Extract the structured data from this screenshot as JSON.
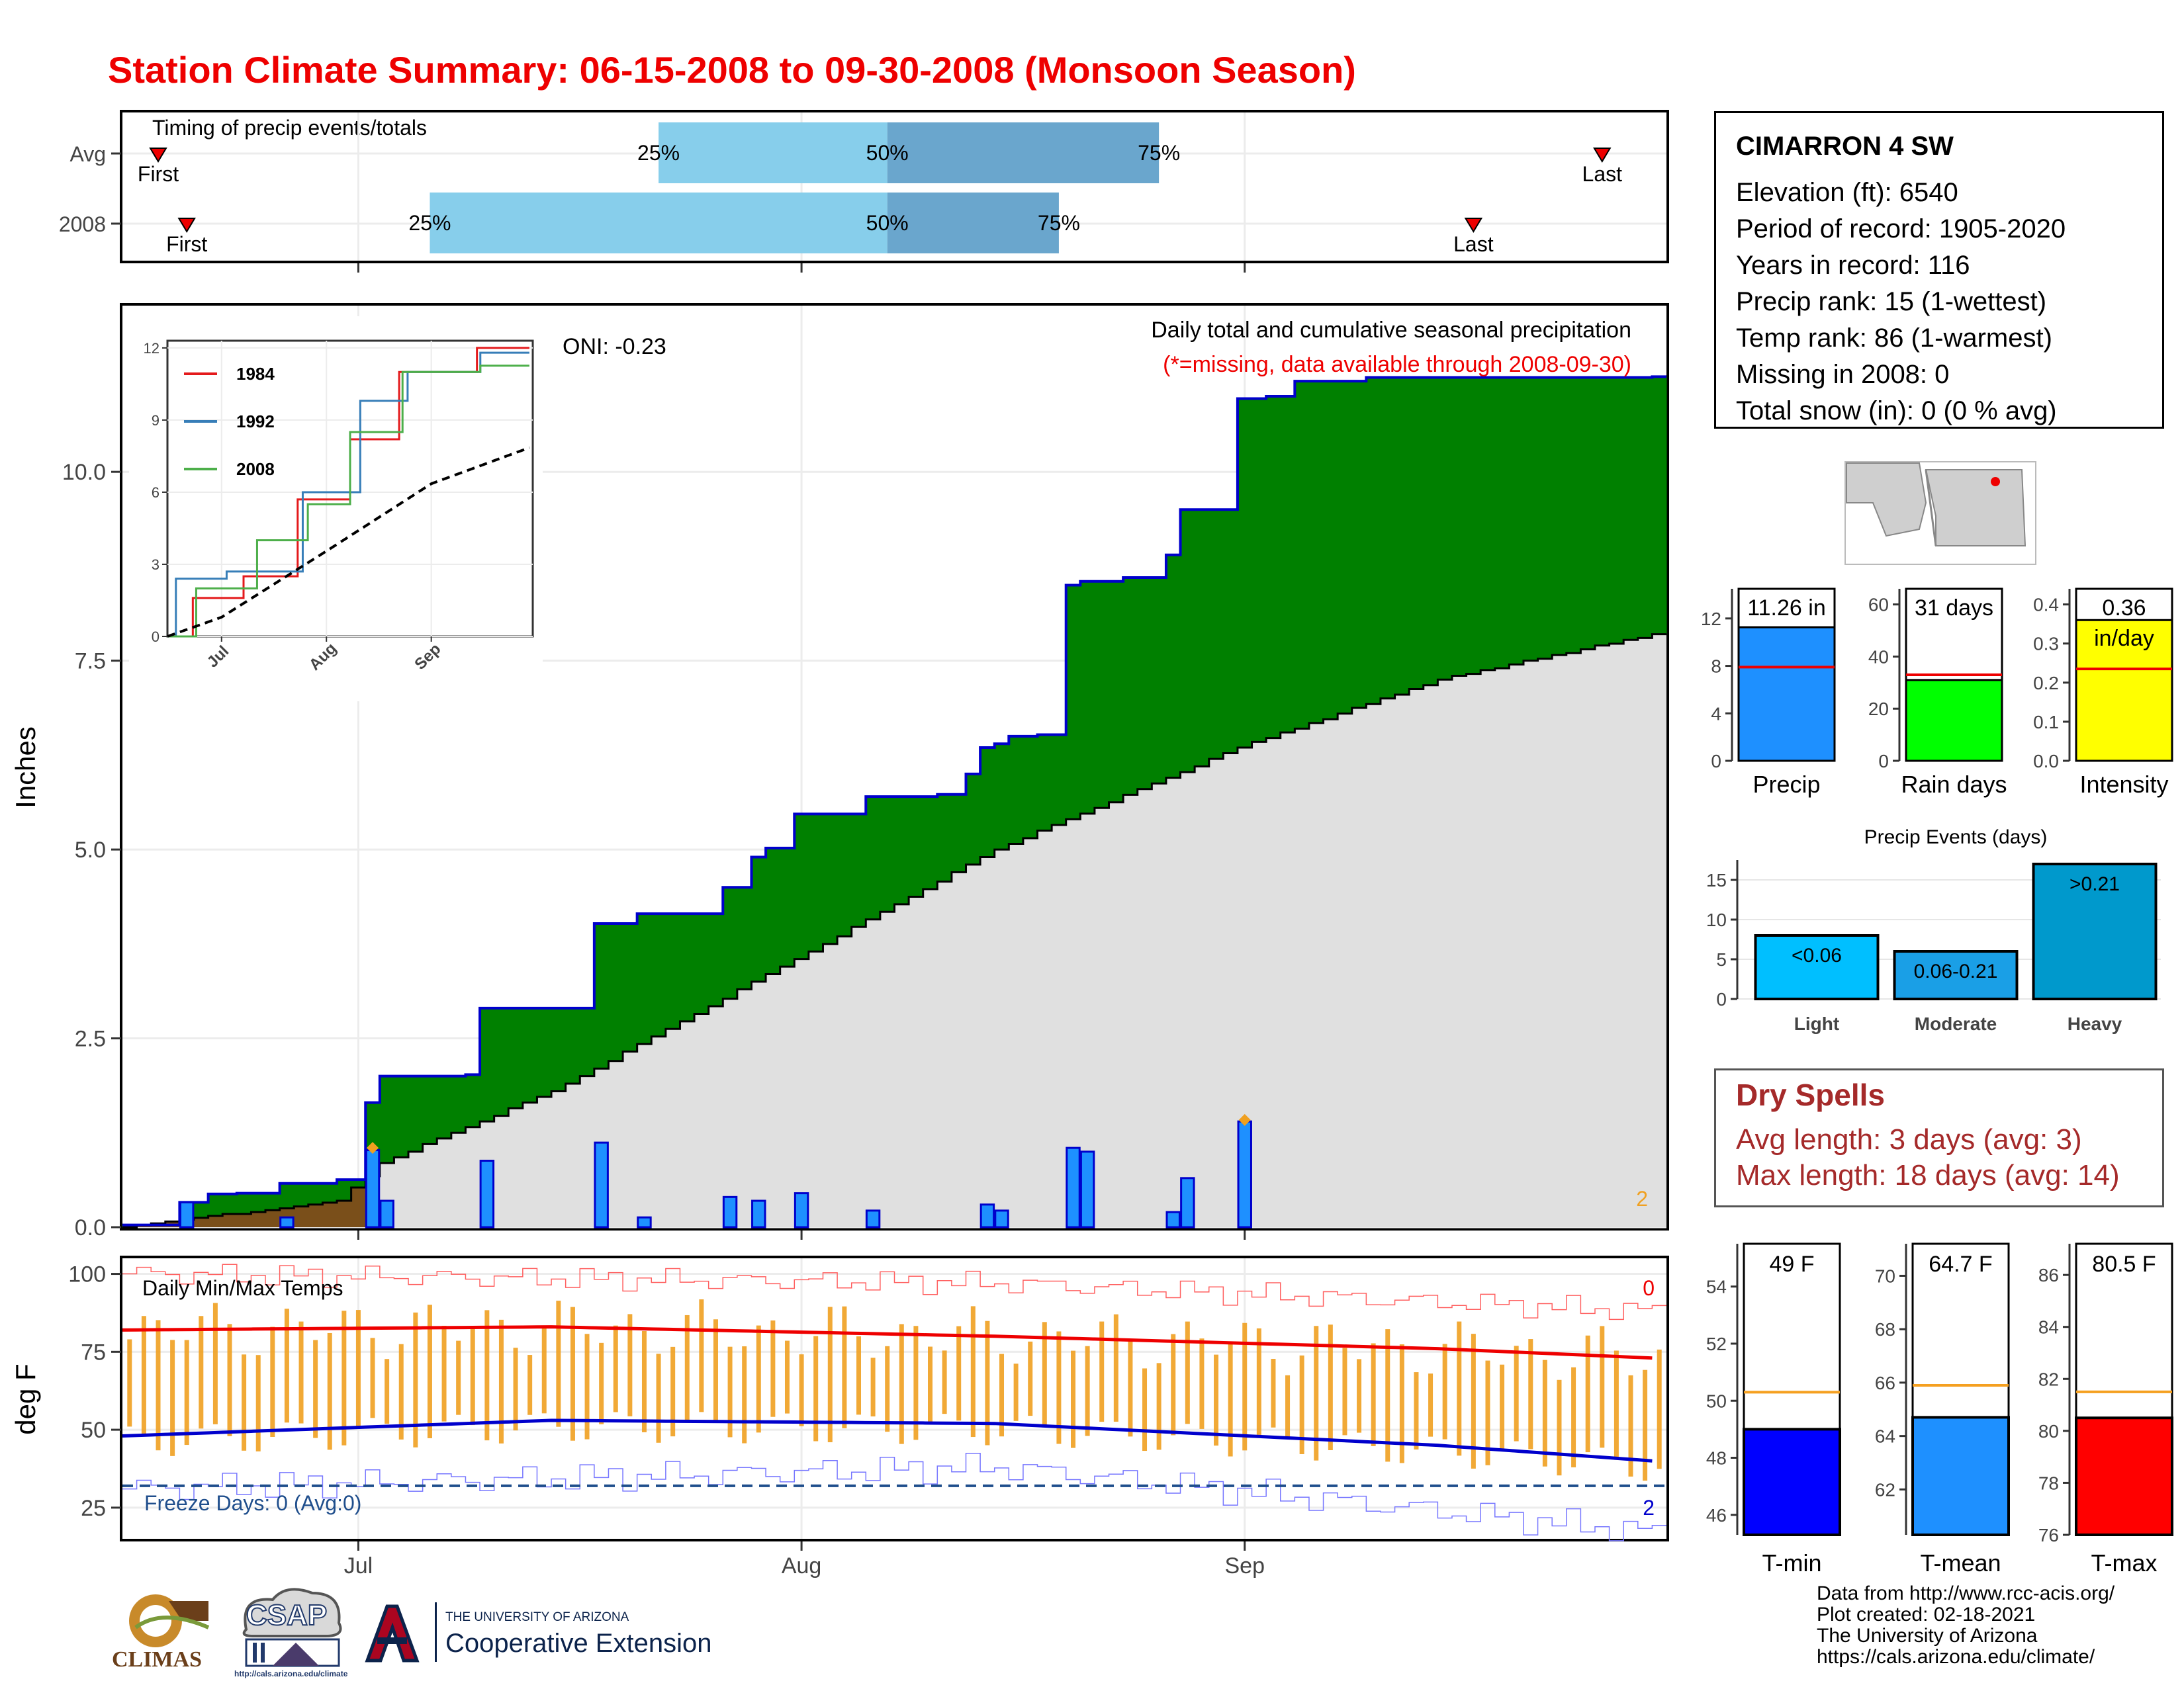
{
  "title": "Station Climate Summary: 06-15-2008 to 09-30-2008 (Monsoon Season)",
  "colors": {
    "title": "#ee0000",
    "green": "#008000",
    "blue_line": "#0000cc",
    "bar_blue": "#1e90ff",
    "light_blue": "#87ceeb",
    "mid_blue": "#6aa6cd",
    "grey_fill": "#e0e0e0",
    "orange": "#f0a020",
    "dark_red": "#a52a2a"
  },
  "x_axis": {
    "ticks": [
      "Jul",
      "Aug",
      "Sep"
    ]
  },
  "timing": {
    "label": "Timing of precip events/totals",
    "rows": [
      {
        "label": "Avg",
        "first": "First",
        "q25": "25%",
        "q50": "50%",
        "q75": "75%",
        "last": "Last"
      },
      {
        "label": "2008",
        "first": "First",
        "q25": "25%",
        "q50": "50%",
        "q75": "75%",
        "last": "Last"
      }
    ]
  },
  "precip_panel": {
    "ylabel": "Inches",
    "yticks": [
      "0.0",
      "2.5",
      "5.0",
      "7.5",
      "10.0"
    ],
    "oni": "ONI: -0.23",
    "subtitle": "Daily total and cumulative seasonal precipitation",
    "missing_note": "(*=missing, data available through 2008-09-30)",
    "corner_label": "2",
    "inset": {
      "yticks": [
        "0",
        "3",
        "6",
        "9",
        "12"
      ],
      "xticks": [
        "Jul",
        "Aug",
        "Sep"
      ],
      "legend": [
        "1984",
        "1992",
        "2008"
      ],
      "legend_colors": [
        "#e41a1c",
        "#377eb8",
        "#4daf4a"
      ]
    }
  },
  "temp_panel": {
    "ylabel": "deg F",
    "yticks": [
      "25",
      "50",
      "75",
      "100"
    ],
    "title": "Daily Min/Max Temps",
    "freeze": "Freeze Days: 0 (Avg:0)",
    "corner_top": "0",
    "corner_bottom": "2"
  },
  "station": {
    "name": "CIMARRON 4 SW",
    "lines": [
      "Elevation (ft): 6540",
      "Period of record: 1905-2020",
      "Years in record: 116",
      "Precip rank: 15 (1-wettest)",
      "Temp rank: 86 (1-warmest)",
      "Missing in 2008: 0",
      "Total snow (in): 0 (0 % avg)"
    ]
  },
  "summary_bars": [
    {
      "label": "Precip",
      "value_text": "11.26 in",
      "yticks": [
        "0",
        "4",
        "8",
        "12"
      ]
    },
    {
      "label": "Rain days",
      "value_text": "31 days",
      "yticks": [
        "0",
        "20",
        "40",
        "60"
      ]
    },
    {
      "label": "Intensity",
      "value_text": "0.36",
      "unit_text": "in/day",
      "yticks": [
        "0.0",
        "0.1",
        "0.2",
        "0.3",
        "0.4"
      ]
    }
  ],
  "precip_events": {
    "title": "Precip Events (days)",
    "yticks": [
      "0",
      "5",
      "10",
      "15"
    ],
    "categories": [
      "Light",
      "Moderate",
      "Heavy"
    ],
    "bar_labels": [
      "<0.06",
      "0.06-0.21",
      ">0.21"
    ]
  },
  "dry_spells": {
    "title": "Dry Spells",
    "avg_length": "Avg length: 3 days (avg: 3)",
    "max_length": "Max length: 18 days (avg: 14)"
  },
  "temp_bars": [
    {
      "label": "T-min",
      "value_text": "49 F",
      "yticks": [
        "46",
        "48",
        "50",
        "52",
        "54"
      ]
    },
    {
      "label": "T-mean",
      "value_text": "64.7 F",
      "yticks": [
        "62",
        "64",
        "66",
        "68",
        "70"
      ]
    },
    {
      "label": "T-max",
      "value_text": "80.5 F",
      "yticks": [
        "76",
        "78",
        "80",
        "82",
        "84",
        "86"
      ]
    }
  ],
  "logos": {
    "climas": "CLIMAS",
    "csap": "CSAP",
    "csap_url": "http://cals.arizona.edu/climate",
    "ua_line1": "THE UNIVERSITY OF ARIZONA",
    "ua_line2": "Cooperative Extension"
  },
  "credits": [
    "Data from http://www.rcc-acis.org/",
    "Plot created: 02-18-2021",
    "The University of Arizona",
    "https://cals.arizona.edu/climate/"
  ],
  "chart_data": [
    {
      "type": "bar",
      "title": "Timing of precip events/totals",
      "categories": [
        "Avg",
        "2008"
      ],
      "series": [
        {
          "name": "Avg",
          "first": "2008-06-17",
          "q25": "2008-07-22",
          "q50": "2008-08-07",
          "q75": "2008-08-26",
          "last": "2008-09-26"
        },
        {
          "name": "2008",
          "first": "2008-06-19",
          "q25": "2008-07-06",
          "q50": "2008-08-07",
          "q75": "2008-08-19",
          "last": "2008-09-17"
        }
      ]
    },
    {
      "type": "area",
      "title": "Daily total and cumulative seasonal precipitation",
      "ylabel": "Inches",
      "ylim": [
        0,
        12.2
      ],
      "x_range": [
        "2008-06-15",
        "2008-09-30"
      ],
      "cumulative_2008": [
        [
          "2008-06-15",
          0.03
        ],
        [
          "2008-06-19",
          0.33
        ],
        [
          "2008-06-21",
          0.44
        ],
        [
          "2008-06-23",
          0.45
        ],
        [
          "2008-06-26",
          0.58
        ],
        [
          "2008-06-30",
          0.63
        ],
        [
          "2008-07-02",
          1.65
        ],
        [
          "2008-07-03",
          2.0
        ],
        [
          "2008-07-09",
          2.02
        ],
        [
          "2008-07-10",
          2.9
        ],
        [
          "2008-07-18",
          4.02
        ],
        [
          "2008-07-21",
          4.15
        ],
        [
          "2008-07-27",
          4.5
        ],
        [
          "2008-07-29",
          4.9
        ],
        [
          "2008-07-30",
          5.02
        ],
        [
          "2008-08-01",
          5.47
        ],
        [
          "2008-08-06",
          5.7
        ],
        [
          "2008-08-11",
          5.73
        ],
        [
          "2008-08-13",
          6.0
        ],
        [
          "2008-08-14",
          6.35
        ],
        [
          "2008-08-15",
          6.4
        ],
        [
          "2008-08-16",
          6.5
        ],
        [
          "2008-08-18",
          6.52
        ],
        [
          "2008-08-20",
          8.5
        ],
        [
          "2008-08-21",
          8.55
        ],
        [
          "2008-08-24",
          8.6
        ],
        [
          "2008-08-27",
          8.9
        ],
        [
          "2008-08-28",
          9.5
        ],
        [
          "2008-09-01",
          10.97
        ],
        [
          "2008-09-03",
          11.0
        ],
        [
          "2008-09-05",
          11.2
        ],
        [
          "2008-09-10",
          11.25
        ],
        [
          "2008-09-30",
          11.26
        ]
      ],
      "average_cumulative": [
        [
          "2008-06-15",
          0.0
        ],
        [
          "2008-06-30",
          0.35
        ],
        [
          "2008-07-03",
          0.85
        ],
        [
          "2008-07-15",
          1.8
        ],
        [
          "2008-08-01",
          3.55
        ],
        [
          "2008-08-15",
          5.0
        ],
        [
          "2008-09-01",
          6.35
        ],
        [
          "2008-09-15",
          7.25
        ],
        [
          "2008-09-30",
          7.85
        ]
      ],
      "daily_precip": [
        [
          "2008-06-19",
          0.33
        ],
        [
          "2008-06-26",
          0.13
        ],
        [
          "2008-07-02",
          1.02
        ],
        [
          "2008-07-03",
          0.35
        ],
        [
          "2008-07-10",
          0.88
        ],
        [
          "2008-07-18",
          1.12
        ],
        [
          "2008-07-21",
          0.13
        ],
        [
          "2008-07-27",
          0.4
        ],
        [
          "2008-07-29",
          0.35
        ],
        [
          "2008-08-01",
          0.45
        ],
        [
          "2008-08-06",
          0.22
        ],
        [
          "2008-08-14",
          0.3
        ],
        [
          "2008-08-15",
          0.22
        ],
        [
          "2008-08-20",
          1.05
        ],
        [
          "2008-08-21",
          1.0
        ],
        [
          "2008-08-27",
          0.2
        ],
        [
          "2008-08-28",
          0.65
        ],
        [
          "2008-09-01",
          1.4
        ]
      ],
      "missing_markers": [
        [
          "2008-07-02",
          1.05
        ],
        [
          "2008-09-01",
          1.42
        ]
      ]
    },
    {
      "type": "line",
      "title": "Inset cumulative precipitation",
      "ylim": [
        0,
        12
      ],
      "series": [
        {
          "name": "1984",
          "values": [
            [
              0,
              0
            ],
            [
              15,
              1.6
            ],
            [
              30,
              2.5
            ],
            [
              47,
              5.7
            ],
            [
              61,
              8.2
            ],
            [
              76,
              11.0
            ],
            [
              107,
              12.0
            ]
          ]
        },
        {
          "name": "1992",
          "values": [
            [
              0,
              0
            ],
            [
              5,
              2.4
            ],
            [
              30,
              2.7
            ],
            [
              50,
              6.0
            ],
            [
              64,
              9.8
            ],
            [
              78,
              11.0
            ],
            [
              107,
              11.8
            ]
          ]
        },
        {
          "name": "2008",
          "values": [
            [
              0,
              0
            ],
            [
              17,
              2.0
            ],
            [
              36,
              4.0
            ],
            [
              47,
              5.5
            ],
            [
              61,
              8.5
            ],
            [
              78,
              11.0
            ],
            [
              107,
              11.26
            ]
          ]
        },
        {
          "name": "Average",
          "values": [
            [
              0,
              0
            ],
            [
              16,
              0.8
            ],
            [
              47,
              3.55
            ],
            [
              78,
              6.35
            ],
            [
              107,
              7.85
            ]
          ]
        }
      ]
    },
    {
      "type": "line",
      "title": "Daily Min/Max Temps",
      "ylabel": "deg F",
      "ylim": [
        15,
        105
      ],
      "avg_max": [
        [
          "2008-06-15",
          82
        ],
        [
          "2008-07-15",
          83
        ],
        [
          "2008-08-15",
          80
        ],
        [
          "2008-09-15",
          76
        ],
        [
          "2008-09-30",
          73
        ]
      ],
      "avg_min": [
        [
          "2008-06-15",
          48
        ],
        [
          "2008-07-15",
          53
        ],
        [
          "2008-08-15",
          52
        ],
        [
          "2008-09-15",
          45
        ],
        [
          "2008-09-30",
          40
        ]
      ],
      "freeze_line": 32,
      "record_high": [
        [
          "2008-06-15",
          100
        ],
        [
          "2008-08-15",
          97
        ],
        [
          "2008-09-30",
          88
        ]
      ],
      "record_low": [
        [
          "2008-06-15",
          31
        ],
        [
          "2008-08-15",
          38
        ],
        [
          "2008-09-30",
          17
        ]
      ]
    },
    {
      "type": "bar",
      "title": "Season summary",
      "categories": [
        "Precip",
        "Rain days",
        "Intensity"
      ],
      "values": [
        11.26,
        31,
        0.36
      ],
      "averages": [
        7.9,
        33,
        0.235
      ],
      "ylim": [
        [
          0,
          14.5
        ],
        [
          0,
          66
        ],
        [
          0,
          0.44
        ]
      ]
    },
    {
      "type": "bar",
      "title": "Precip Events (days)",
      "categories": [
        "Light",
        "Moderate",
        "Heavy"
      ],
      "values": [
        8,
        6,
        17
      ],
      "ylim": [
        0,
        17.5
      ]
    },
    {
      "type": "bar",
      "title": "Temperature summary",
      "categories": [
        "T-min",
        "T-mean",
        "T-max"
      ],
      "values": [
        49,
        64.7,
        80.5
      ],
      "averages": [
        50.3,
        65.9,
        81.5
      ],
      "ylim": [
        [
          45.3,
          55.5
        ],
        [
          60.3,
          71.2
        ],
        [
          76,
          87.2
        ]
      ]
    }
  ]
}
